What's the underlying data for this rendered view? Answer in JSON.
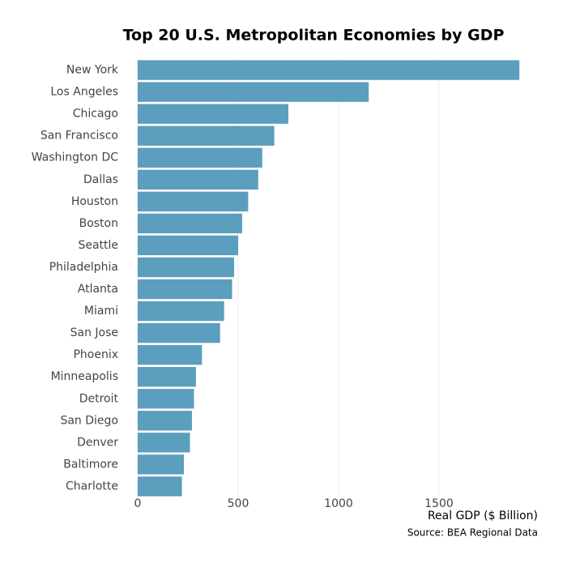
{
  "chart_data": {
    "type": "barh",
    "title": "Top 20 U.S. Metropolitan Economies by GDP",
    "xlabel": "Real GDP ($ Billion)",
    "caption": "Source: BEA Regional Data",
    "categories": [
      "New York",
      "Los Angeles",
      "Chicago",
      "San Francisco",
      "Washington DC",
      "Dallas",
      "Houston",
      "Boston",
      "Seattle",
      "Philadelphia",
      "Atlanta",
      "Miami",
      "San Jose",
      "Phoenix",
      "Minneapolis",
      "Detroit",
      "San Diego",
      "Denver",
      "Baltimore",
      "Charlotte"
    ],
    "values": [
      1900,
      1150,
      750,
      680,
      620,
      600,
      550,
      520,
      500,
      480,
      470,
      430,
      410,
      320,
      290,
      280,
      270,
      260,
      230,
      220
    ],
    "color": "#5b9ebd",
    "xlim": [
      0,
      2000
    ],
    "xticks": [
      0,
      500,
      1000,
      1500
    ],
    "grid": true
  }
}
